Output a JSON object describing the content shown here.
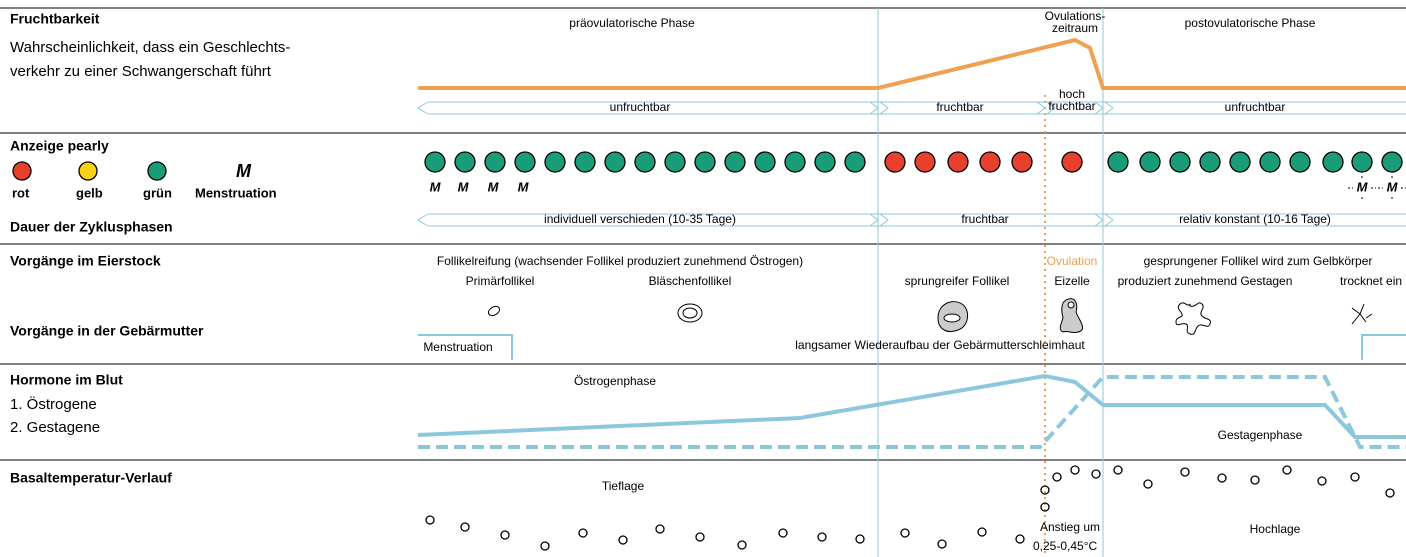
{
  "fertility": {
    "title": "Fruchtbarkeit",
    "description": [
      "Wahrscheinlichkeit, dass ein Geschlechts-",
      "verkehr zu einer Schwangerschaft führt"
    ],
    "phases": [
      "präovulatorische Phase",
      [
        "Ovulations-",
        "zeitraum"
      ],
      "postovulatorische Phase"
    ],
    "levels": [
      "unfruchtbar",
      "fruchtbar",
      [
        "hoch",
        "fruchtbar"
      ],
      "unfruchtbar"
    ]
  },
  "indicator": {
    "title": "Anzeige pearly",
    "legend": [
      "rot",
      "gelb",
      "grün",
      "Menstruation"
    ]
  },
  "duration": {
    "title": "Dauer der Zyklusphasen",
    "phases": [
      "individuell verschieden (10-35 Tage)",
      "fruchtbar",
      "relativ konstant (10-16 Tage)"
    ]
  },
  "ovary": {
    "title": "Vorgänge im Eierstock",
    "maturation": "Follikelreifung (wachsender Follikel produziert zunehmend Östrogen)",
    "primary": "Primärfollikel",
    "vesicular": "Bläschenfollikel",
    "mature": "sprungreifer Follikel",
    "ovulation": "Ovulation",
    "egg": "Eizelle",
    "corpus": "gesprungener Follikel wird zum Gelbkörper",
    "gestagen": "produziert zunehmend Gestagen",
    "dries": "trocknet ein"
  },
  "uterus": {
    "title": "Vorgänge in der Gebärmutter",
    "menstruation": "Menstruation",
    "rebuild": "langsamer Wiederaufbau der Gebärmutterschleimhaut"
  },
  "hormones": {
    "title": "Hormone im Blut",
    "items": [
      "1. Östrogene",
      "2. Gestagene"
    ],
    "estrogen_phase": "Östrogenphase",
    "gestagen_phase": "Gestagenphase"
  },
  "temperature": {
    "title": "Basaltemperatur-Verlauf",
    "low": "Tieflage",
    "high": "Hochlage",
    "rise": [
      "Anstieg um",
      "0,25-0,45°C"
    ]
  }
}
